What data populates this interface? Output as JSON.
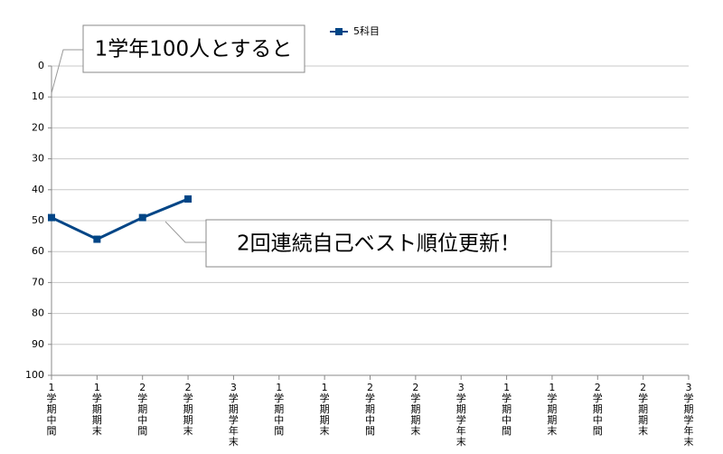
{
  "chart_data": {
    "type": "line",
    "categories": [
      "1学期中間",
      "1学期期末",
      "2学期中間",
      "2学期期末",
      "3学期学年末",
      "1学期中間",
      "1学期期末",
      "2学期中間",
      "2学期期末",
      "3学期学年末",
      "1学期中間",
      "1学期期末",
      "2学期中間",
      "2学期期末",
      "3学期学年末"
    ],
    "series": [
      {
        "name": "5科目",
        "color": "#004586",
        "values": [
          49,
          56,
          49,
          43,
          null,
          null,
          null,
          null,
          null,
          null,
          null,
          null,
          null,
          null,
          null
        ]
      }
    ],
    "ylim": [
      0,
      100
    ],
    "yticks": [
      0,
      10,
      20,
      30,
      40,
      50,
      60,
      70,
      80,
      90,
      100
    ],
    "y_inverted": true,
    "grid": true,
    "legend": "top",
    "annotations": [
      "1学年100人とすると",
      "2回連続自己ベスト順位更新！"
    ]
  }
}
